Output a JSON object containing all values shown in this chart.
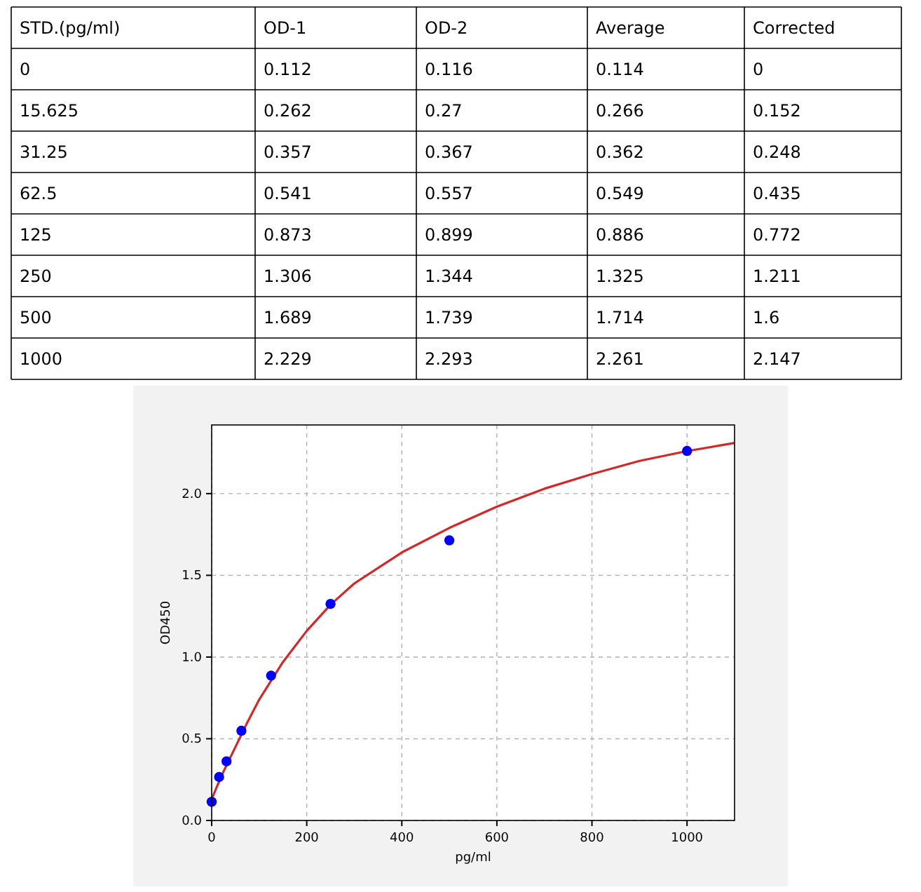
{
  "chart_data": [
    {
      "type": "heatmap",
      "ylabel": "STD.(pg/ml)",
      "categories": [
        "OD-1",
        "OD-2",
        "Average",
        "Corrected"
      ],
      "y_categories": [
        "0",
        "15.625",
        "31.25",
        "62.5",
        "125",
        "250",
        "500",
        "1000"
      ],
      "data_labels": true,
      "cells": [
        [
          0.112,
          0.116,
          0.114,
          0
        ],
        [
          0.262,
          0.27,
          0.266,
          0.152
        ],
        [
          0.357,
          0.367,
          0.362,
          0.248
        ],
        [
          0.541,
          0.557,
          0.549,
          0.435
        ],
        [
          0.873,
          0.899,
          0.886,
          0.772
        ],
        [
          1.306,
          1.344,
          1.325,
          1.211
        ],
        [
          1.689,
          1.739,
          1.714,
          1.6
        ],
        [
          2.229,
          2.293,
          2.261,
          2.147
        ]
      ]
    },
    {
      "type": "scatter",
      "xlabel": "pg/ml",
      "ylabel": "OD450",
      "xlim": [
        0,
        1100
      ],
      "ylim": [
        0,
        2.42
      ],
      "xticks": [
        0,
        200,
        400,
        600,
        800,
        1000
      ],
      "yticks": [
        {
          "value": 0,
          "label": "0.0"
        },
        {
          "value": 0.5,
          "label": "0.5"
        },
        {
          "value": 1,
          "label": "1.0"
        },
        {
          "value": 1.5,
          "label": "1.5"
        },
        {
          "value": 2,
          "label": "2.0"
        }
      ],
      "grid": true,
      "series": [
        {
          "type": "line",
          "color": "#d62728",
          "x": [
            0,
            10,
            25,
            50,
            75,
            100,
            150,
            200,
            250,
            300,
            400,
            500,
            600,
            700,
            800,
            900,
            1000,
            1100
          ],
          "values": [
            0.13,
            0.2,
            0.3,
            0.45,
            0.6,
            0.74,
            0.97,
            1.16,
            1.32,
            1.45,
            1.64,
            1.79,
            1.92,
            2.03,
            2.12,
            2.2,
            2.26,
            2.31
          ]
        },
        {
          "type": "scatter",
          "marker": "circle",
          "color": "#0000ff",
          "x": [
            0,
            15.625,
            31.25,
            62.5,
            125,
            250,
            500,
            1000
          ],
          "values": [
            0.114,
            0.266,
            0.362,
            0.549,
            0.886,
            1.325,
            1.714,
            2.261
          ]
        }
      ]
    }
  ]
}
